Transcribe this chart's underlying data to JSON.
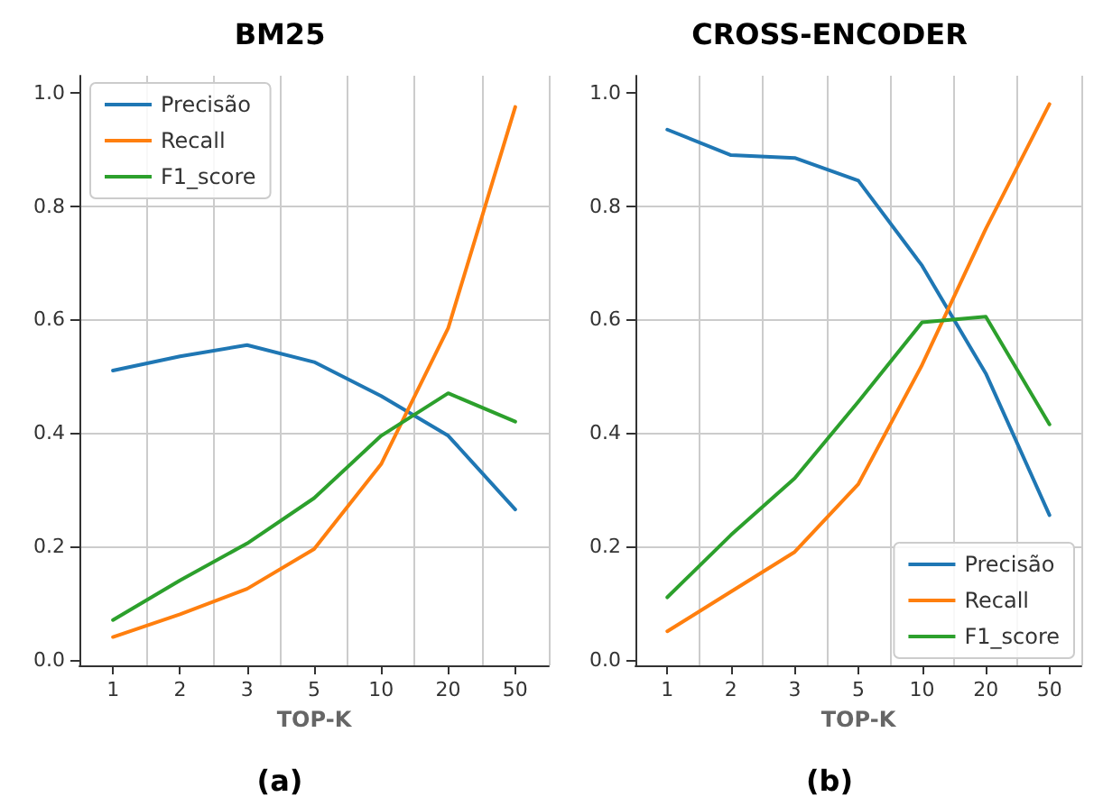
{
  "chart_data": [
    {
      "type": "line",
      "title": "BM25",
      "xlabel": "TOP-K",
      "annotations": [
        "(a)"
      ],
      "categories": [
        "1",
        "2",
        "3",
        "5",
        "10",
        "20",
        "50"
      ],
      "series": [
        {
          "name": "Precisão",
          "color": "#1f77b4",
          "values": [
            0.51,
            0.535,
            0.555,
            0.525,
            0.465,
            0.395,
            0.265
          ]
        },
        {
          "name": "Recall",
          "color": "#ff7f0e",
          "values": [
            0.04,
            0.08,
            0.125,
            0.195,
            0.345,
            0.585,
            0.975
          ]
        },
        {
          "name": "F1_score",
          "color": "#2ca02c",
          "values": [
            0.07,
            0.14,
            0.205,
            0.285,
            0.395,
            0.47,
            0.42
          ]
        }
      ],
      "ylim": [
        -0.01,
        1.03
      ],
      "yticks": [
        {
          "value": 0,
          "label": "0.0"
        },
        {
          "value": 0.2,
          "label": "0.2"
        },
        {
          "value": 0.4,
          "label": "0.4"
        },
        {
          "value": 0.6,
          "label": "0.6"
        },
        {
          "value": 0.8,
          "label": "0.8"
        },
        {
          "value": 1,
          "label": "1.0"
        }
      ],
      "grid": true,
      "legend": "top left",
      "marker": "none",
      "line_style": "solid"
    },
    {
      "type": "line",
      "title": "CROSS-ENCODER",
      "xlabel": "TOP-K",
      "annotations": [
        "(b)"
      ],
      "categories": [
        "1",
        "2",
        "3",
        "5",
        "10",
        "20",
        "50"
      ],
      "series": [
        {
          "name": "Precisão",
          "color": "#1f77b4",
          "values": [
            0.935,
            0.89,
            0.885,
            0.845,
            0.695,
            0.505,
            0.255
          ]
        },
        {
          "name": "Recall",
          "color": "#ff7f0e",
          "values": [
            0.05,
            0.12,
            0.19,
            0.31,
            0.52,
            0.76,
            0.98
          ]
        },
        {
          "name": "F1_score",
          "color": "#2ca02c",
          "values": [
            0.11,
            0.22,
            0.32,
            0.455,
            0.595,
            0.605,
            0.415
          ]
        }
      ],
      "ylim": [
        -0.01,
        1.03
      ],
      "yticks": [
        {
          "value": 0,
          "label": "0.0"
        },
        {
          "value": 0.2,
          "label": "0.2"
        },
        {
          "value": 0.4,
          "label": "0.4"
        },
        {
          "value": 0.6,
          "label": "0.6"
        },
        {
          "value": 0.8,
          "label": "0.8"
        },
        {
          "value": 1,
          "label": "1.0"
        }
      ],
      "grid": true,
      "legend": "bottom right",
      "marker": "none",
      "line_style": "solid"
    }
  ]
}
